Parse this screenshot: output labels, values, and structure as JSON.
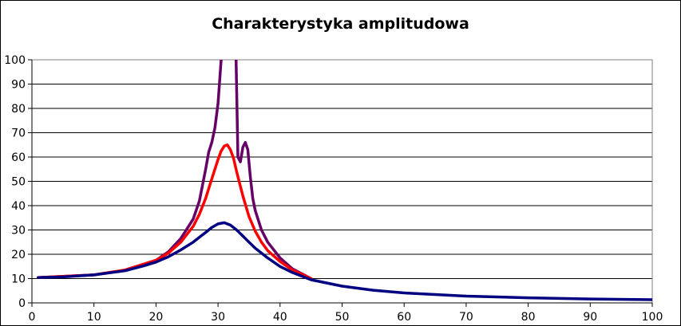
{
  "chart_data": {
    "type": "line",
    "title": "Charakterystyka amplitudowa",
    "xlabel": "",
    "ylabel": "",
    "xlim": [
      0,
      100
    ],
    "ylim": [
      0,
      100
    ],
    "x_ticks": [
      "0",
      "10",
      "20",
      "30",
      "40",
      "50",
      "60",
      "70",
      "80",
      "90",
      "100"
    ],
    "y_ticks": [
      "0",
      "10",
      "20",
      "30",
      "40",
      "50",
      "60",
      "70",
      "80",
      "90",
      "100"
    ],
    "grid": "horizontal",
    "legend": "none",
    "series": [
      {
        "color": "#660066",
        "x": [
          1,
          10,
          15,
          20,
          22,
          24,
          26,
          27,
          28,
          28.5,
          29,
          29.5,
          30,
          30.5,
          31,
          31.5,
          32,
          32.5,
          32.9,
          33.2,
          33.6,
          34,
          34.4,
          34.8,
          35.2,
          35.6,
          36,
          37,
          38,
          40,
          42,
          45
        ],
        "y": [
          10.4,
          11.5,
          13.5,
          17.5,
          21,
          26.5,
          34.5,
          42,
          55,
          62,
          66,
          72,
          82,
          100,
          102,
          105,
          105,
          103,
          102,
          60,
          58,
          64,
          66,
          63,
          52,
          43,
          38,
          30,
          25,
          18.5,
          14,
          10
        ]
      },
      {
        "color": "#ff0000",
        "x": [
          1,
          10,
          15,
          20,
          22,
          24,
          26,
          27,
          28,
          29,
          30,
          30.5,
          31,
          31.5,
          32,
          32.5,
          33,
          34,
          35,
          36,
          37,
          38,
          40,
          42,
          45
        ],
        "y": [
          10.4,
          11.5,
          13.5,
          17.5,
          20.5,
          25,
          31.5,
          36.5,
          43,
          51,
          59,
          62.5,
          64.5,
          65,
          63,
          59.5,
          54,
          44,
          35.5,
          29.5,
          25,
          21.5,
          17,
          13.5,
          10
        ]
      },
      {
        "color": "#000080",
        "x": [
          1,
          5,
          10,
          15,
          18,
          20,
          22,
          24,
          26,
          27,
          28,
          29,
          30,
          31,
          32,
          33,
          34,
          35,
          36,
          38,
          40,
          42,
          45,
          50,
          55,
          60,
          70,
          80,
          90,
          100
        ],
        "y": [
          10.4,
          10.7,
          11.5,
          13.2,
          15.2,
          16.8,
          19,
          21.8,
          25,
          27,
          29,
          31,
          32.5,
          33,
          32,
          30,
          27.5,
          25,
          22.5,
          18.5,
          15,
          12.5,
          9.5,
          6.9,
          5.2,
          4.1,
          2.8,
          2.1,
          1.6,
          1.3
        ]
      }
    ]
  }
}
